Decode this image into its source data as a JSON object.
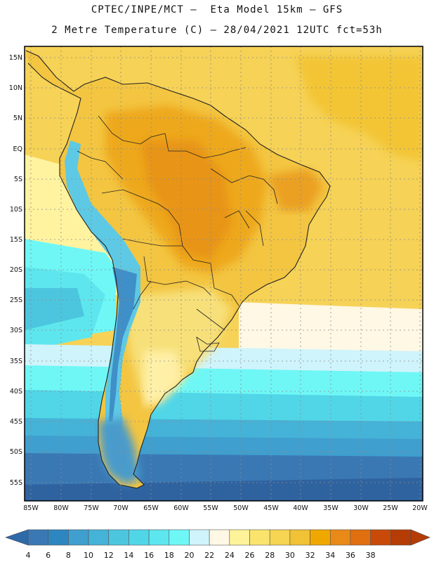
{
  "header": {
    "line1": "CPTEC/INPE/MCT –  Eta Model 15km – GFS",
    "line2": "2 Metre Temperature (C) – 28/04/2021 12UTC fct=53h"
  },
  "map": {
    "lat_labels": [
      "15N",
      "10N",
      "5N",
      "EQ",
      "5S",
      "10S",
      "15S",
      "20S",
      "25S",
      "30S",
      "35S",
      "40S",
      "45S",
      "50S",
      "55S"
    ],
    "lon_labels": [
      "85W",
      "80W",
      "75W",
      "70W",
      "65W",
      "60W",
      "55W",
      "50W",
      "45W",
      "40W",
      "35W",
      "30W",
      "25W",
      "20W"
    ],
    "lat_range_deg": [
      -58,
      17
    ],
    "lon_range_deg": [
      -86,
      -20
    ]
  },
  "colorbar": {
    "labels": [
      "4",
      "6",
      "8",
      "10",
      "12",
      "14",
      "16",
      "18",
      "20",
      "22",
      "24",
      "26",
      "28",
      "30",
      "32",
      "34",
      "36",
      "38"
    ],
    "colors": [
      "#3a78b4",
      "#2e86c1",
      "#3f9fcf",
      "#45b3d8",
      "#4cc6df",
      "#51d6e8",
      "#5ee6ee",
      "#6ff7f6",
      "#cff4fb",
      "#fff8e4",
      "#fff39a",
      "#fbe46e",
      "#f5d552",
      "#f1c136",
      "#f0a800",
      "#e98a18",
      "#e06f10",
      "#c94a08",
      "#b63c06"
    ],
    "left_arrow_color": "#2f6aa8",
    "right_arrow_color": "#b63c06"
  }
}
